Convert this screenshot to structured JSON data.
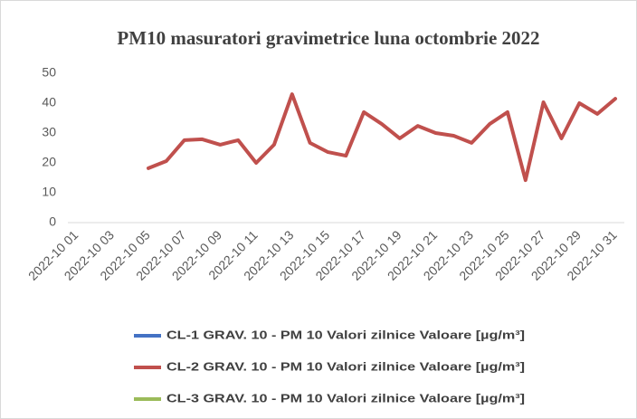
{
  "chart_data": {
    "type": "line",
    "title": "PM10 masuratori gravimetrice luna octombrie 2022",
    "categories": [
      "2022-10 01",
      null,
      "2022-10 03",
      null,
      "2022-10 05",
      null,
      "2022-10 07",
      null,
      "2022-10 09",
      null,
      "2022-10 11",
      null,
      "2022-10 13",
      null,
      "2022-10 15",
      null,
      "2022-10 17",
      null,
      "2022-10 19",
      null,
      "2022-10 21",
      null,
      "2022-10 23",
      null,
      "2022-10 25",
      null,
      "2022-10 27",
      null,
      "2022-10 29",
      null,
      "2022-10 31"
    ],
    "series": [
      {
        "name": "CL-1 GRAV. 10 - PM 10 Valori zilnice Valoare [µg/m³]",
        "color": "#4472c4",
        "values": [
          null,
          null,
          null,
          null,
          null,
          null,
          null,
          null,
          null,
          null,
          null,
          null,
          null,
          null,
          null,
          null,
          null,
          null,
          null,
          null,
          null,
          null,
          null,
          null,
          null,
          null,
          null,
          null,
          null,
          null,
          null
        ]
      },
      {
        "name": "CL-2 GRAV. 10 - PM 10 Valori zilnice Valoare [µg/m³]",
        "color": "#c0504d",
        "values": [
          null,
          null,
          null,
          null,
          18.2,
          20.6,
          27.6,
          27.9,
          26.1,
          27.6,
          20,
          26.1,
          43,
          26.7,
          23.6,
          22.4,
          37,
          33,
          28.2,
          32.4,
          30,
          29.1,
          26.7,
          33,
          37,
          14.2,
          40.3,
          28.2,
          40,
          36.4,
          41.5
        ]
      },
      {
        "name": "CL-3 GRAV. 10 - PM 10 Valori zilnice Valoare [µg/m³]",
        "color": "#9bbb59",
        "values": [
          null,
          null,
          null,
          null,
          null,
          null,
          null,
          null,
          null,
          null,
          null,
          null,
          null,
          null,
          null,
          null,
          null,
          null,
          null,
          null,
          null,
          null,
          null,
          null,
          null,
          null,
          null,
          null,
          null,
          null,
          null
        ]
      }
    ],
    "ylim": [
      0,
      50
    ],
    "yticks": [
      0,
      10,
      20,
      30,
      40,
      50
    ],
    "grid": false
  }
}
